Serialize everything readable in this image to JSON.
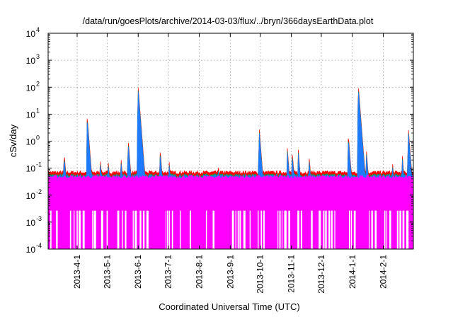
{
  "chart_data": {
    "type": "area",
    "title": "/data/run/goesPlots/archive/2014-03-03/flux/../bryn/366daysEarthData.plot",
    "xlabel": "Coordinated Universal Time (UTC)",
    "ylabel": "cSv/day",
    "yscale": "log",
    "ylim": [
      0.0001,
      10000
    ],
    "xlim": [
      "2013-03-03",
      "2014-03-03"
    ],
    "grid": true,
    "x_ticks": [
      "2013-4-1",
      "2013-5-1",
      "2013-6-1",
      "2013-7-1",
      "2013-8-1",
      "2013-9-1",
      "2013-10-1",
      "2013-11-1",
      "2013-12-1",
      "2014-1-1",
      "2014-2-1"
    ],
    "y_ticks": [
      {
        "base": "10",
        "exp": "4",
        "value": 10000
      },
      {
        "base": "10",
        "exp": "3",
        "value": 1000
      },
      {
        "base": "10",
        "exp": "2",
        "value": 100
      },
      {
        "base": "10",
        "exp": "1",
        "value": 10
      },
      {
        "base": "10",
        "exp": "0",
        "value": 1
      },
      {
        "base": "10",
        "exp": "-1",
        "value": 0.1
      },
      {
        "base": "10",
        "exp": "-2",
        "value": 0.01
      },
      {
        "base": "10",
        "exp": "-3",
        "value": 0.001
      },
      {
        "base": "10",
        "exp": "-4",
        "value": 0.0001
      }
    ],
    "baseline": {
      "top": 0.07,
      "magenta_top": 0.035,
      "magenta_floor": 0.003,
      "dropout_floor": 0.0001
    },
    "series_colors": [
      "#ff0000",
      "#00a050",
      "#1e7bff",
      "#ff00ff"
    ],
    "peaks": [
      {
        "date": "2013-03-19",
        "value": 0.4
      },
      {
        "date": "2013-04-11",
        "value": 9
      },
      {
        "date": "2013-04-24",
        "value": 0.25
      },
      {
        "date": "2013-05-02",
        "value": 0.2
      },
      {
        "date": "2013-05-15",
        "value": 0.2
      },
      {
        "date": "2013-05-22",
        "value": 1.2
      },
      {
        "date": "2013-06-01",
        "value": 100
      },
      {
        "date": "2013-06-23",
        "value": 0.5
      },
      {
        "date": "2013-07-02",
        "value": 0.18
      },
      {
        "date": "2013-08-20",
        "value": 0.15
      },
      {
        "date": "2013-09-30",
        "value": 3
      },
      {
        "date": "2013-10-28",
        "value": 0.6
      },
      {
        "date": "2013-11-02",
        "value": 0.4
      },
      {
        "date": "2013-11-08",
        "value": 0.5
      },
      {
        "date": "2013-11-19",
        "value": 0.25
      },
      {
        "date": "2013-12-28",
        "value": 1.8
      },
      {
        "date": "2014-01-07",
        "value": 120
      },
      {
        "date": "2014-01-15",
        "value": 0.5
      },
      {
        "date": "2014-02-10",
        "value": 0.2
      },
      {
        "date": "2014-02-20",
        "value": 0.3
      },
      {
        "date": "2014-02-26",
        "value": 3
      }
    ]
  }
}
